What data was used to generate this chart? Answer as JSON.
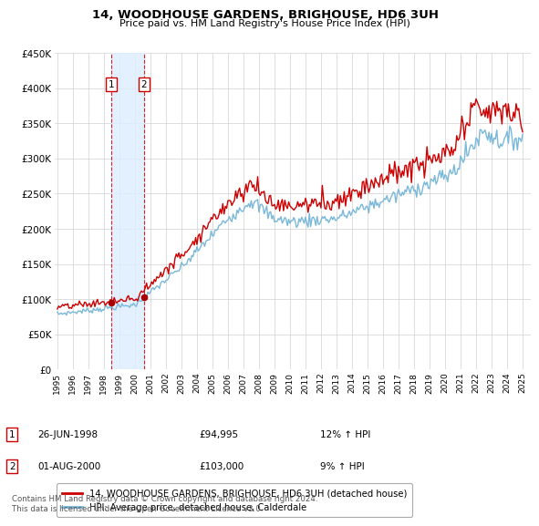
{
  "title": "14, WOODHOUSE GARDENS, BRIGHOUSE, HD6 3UH",
  "subtitle": "Price paid vs. HM Land Registry's House Price Index (HPI)",
  "legend_line1": "14, WOODHOUSE GARDENS, BRIGHOUSE, HD6 3UH (detached house)",
  "legend_line2": "HPI: Average price, detached house, Calderdale",
  "footer": "Contains HM Land Registry data © Crown copyright and database right 2024.\nThis data is licensed under the Open Government Licence v3.0.",
  "transaction1_date": "26-JUN-1998",
  "transaction1_price": "£94,995",
  "transaction1_hpi": "12% ↑ HPI",
  "transaction2_date": "01-AUG-2000",
  "transaction2_price": "£103,000",
  "transaction2_hpi": "9% ↑ HPI",
  "hpi_line_color": "#7ab8d9",
  "price_line_color": "#cc0000",
  "transaction_dot_color": "#aa0000",
  "vline_color": "#cc0000",
  "vshade_color": "#ddeeff",
  "annotation_box_color": "#cc0000",
  "ylim": [
    0,
    450000
  ],
  "yticks": [
    0,
    50000,
    100000,
    150000,
    200000,
    250000,
    300000,
    350000,
    400000,
    450000
  ],
  "ytick_labels": [
    "£0",
    "£50K",
    "£100K",
    "£150K",
    "£200K",
    "£250K",
    "£300K",
    "£350K",
    "£400K",
    "£450K"
  ],
  "xtick_years": [
    1995,
    1996,
    1997,
    1998,
    1999,
    2000,
    2001,
    2002,
    2003,
    2004,
    2005,
    2006,
    2007,
    2008,
    2009,
    2010,
    2011,
    2012,
    2013,
    2014,
    2015,
    2016,
    2017,
    2018,
    2019,
    2020,
    2021,
    2022,
    2023,
    2024,
    2025
  ],
  "transaction1_x": 1998.49,
  "transaction2_x": 2000.58,
  "transaction1_y": 94995,
  "transaction2_y": 103000
}
